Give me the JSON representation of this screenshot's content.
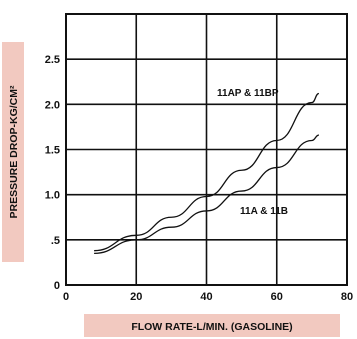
{
  "chart_data": {
    "type": "line",
    "title": "",
    "xlabel": "FLOW RATE-L/MIN. (GASOLINE)",
    "ylabel": "PRESSURE DROP-KG/CM²",
    "xlim": [
      0,
      80
    ],
    "ylim": [
      0,
      3.0
    ],
    "x_ticks": [
      "0",
      "20",
      "40",
      "60",
      "80"
    ],
    "y_ticks": [
      "0",
      ".5",
      "1.0",
      "1.5",
      "2.0",
      "2.5"
    ],
    "grid": true,
    "series": [
      {
        "name": "11AP & 11BP",
        "x": [
          8,
          20,
          30,
          40,
          50,
          60,
          70,
          72
        ],
        "y": [
          0.38,
          0.55,
          0.75,
          0.98,
          1.27,
          1.6,
          2.02,
          2.12
        ]
      },
      {
        "name": "11A & 11B",
        "x": [
          8,
          20,
          30,
          40,
          50,
          60,
          70,
          72
        ],
        "y": [
          0.35,
          0.5,
          0.64,
          0.82,
          1.04,
          1.3,
          1.6,
          1.66
        ]
      }
    ],
    "colors": {
      "line": "#111111",
      "grid": "#111111",
      "label_bg": "#f2c9c0"
    }
  }
}
